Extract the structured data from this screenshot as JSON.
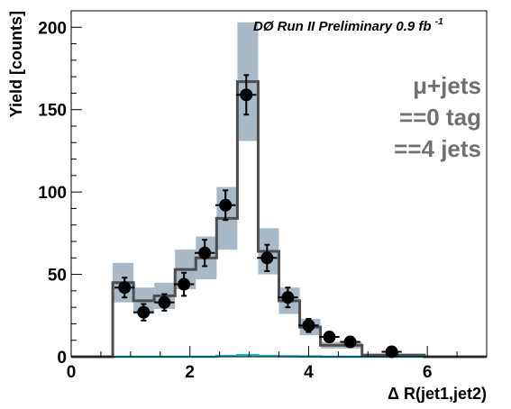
{
  "chart_data": {
    "type": "histogram",
    "title": "",
    "run_label": "DØ Run II Preliminary 0.9 fb",
    "run_label_sup": "-1",
    "selection_labels": [
      "μ+jets",
      "==0 tag",
      "==4 jets"
    ],
    "xlabel": "Δ R(jet1,jet2)",
    "ylabel": "Yield [counts]",
    "xlim": [
      0,
      7
    ],
    "ylim": [
      0,
      210
    ],
    "x_ticks": [
      0,
      2,
      4,
      6
    ],
    "x_tick_labels": [
      "0",
      "2",
      "4",
      "6"
    ],
    "y_ticks": [
      0,
      50,
      100,
      150,
      200
    ],
    "y_tick_labels": [
      "0",
      "50",
      "100",
      "150",
      "200"
    ],
    "grid": false,
    "bin_edges": [
      0,
      0.35,
      0.7,
      1.05,
      1.4,
      1.75,
      2.1,
      2.45,
      2.8,
      3.15,
      3.5,
      3.85,
      4.2,
      4.55,
      4.9,
      5.25,
      5.6,
      5.95,
      6.3,
      6.65,
      7.0
    ],
    "expectation": [
      0,
      0,
      45,
      34,
      37,
      53,
      60,
      84,
      167,
      64,
      34,
      18,
      7,
      7,
      1,
      1,
      1,
      0,
      0,
      0
    ],
    "uncertainty": [
      0,
      0,
      12,
      8,
      8,
      12,
      13,
      19,
      36,
      14,
      8,
      5,
      2,
      2,
      0.5,
      0.5,
      0.5,
      0,
      0,
      0
    ],
    "data_points": [
      {
        "x": 0.9,
        "y": 42,
        "xerr": 0.17,
        "yerr": 6
      },
      {
        "x": 1.22,
        "y": 27,
        "xerr": 0.17,
        "yerr": 5
      },
      {
        "x": 1.57,
        "y": 33,
        "xerr": 0.17,
        "yerr": 5
      },
      {
        "x": 1.9,
        "y": 44,
        "xerr": 0.17,
        "yerr": 7
      },
      {
        "x": 2.25,
        "y": 63,
        "xerr": 0.17,
        "yerr": 8
      },
      {
        "x": 2.6,
        "y": 92,
        "xerr": 0.17,
        "yerr": 9
      },
      {
        "x": 2.95,
        "y": 159,
        "xerr": 0.17,
        "yerr": 12
      },
      {
        "x": 3.3,
        "y": 60,
        "xerr": 0.17,
        "yerr": 8
      },
      {
        "x": 3.65,
        "y": 36,
        "xerr": 0.17,
        "yerr": 6
      },
      {
        "x": 4.0,
        "y": 19,
        "xerr": 0.17,
        "yerr": 4
      },
      {
        "x": 4.35,
        "y": 12,
        "xerr": 0.17,
        "yerr": 3
      },
      {
        "x": 4.7,
        "y": 9,
        "xerr": 0.17,
        "yerr": 3
      },
      {
        "x": 5.4,
        "y": 3,
        "xerr": 0.17,
        "yerr": 2
      }
    ],
    "signal_line": [
      0,
      0,
      0,
      0,
      0,
      0,
      0,
      0.5,
      1,
      0.5,
      0.3,
      0.2,
      0,
      0,
      0,
      0,
      0,
      0,
      0,
      0
    ],
    "colors": {
      "band": "#a9b9c6",
      "expectation_line": "#4d4d4d",
      "data": "#000000",
      "signal": "#1ab0c8",
      "selection_text": "#707070"
    }
  }
}
